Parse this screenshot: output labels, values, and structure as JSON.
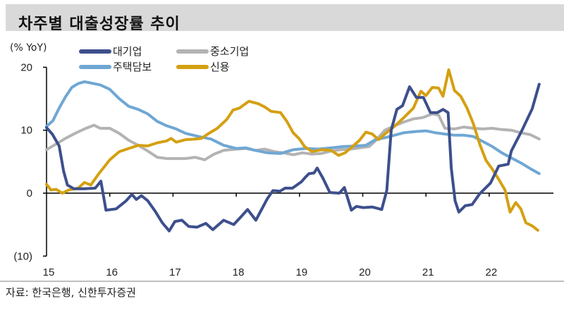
{
  "title": "차주별 대출성장률 추이",
  "source": "자료: 한국은행, 신한투자증권",
  "chart_data": {
    "type": "line",
    "title": "차주별 대출성장률 추이",
    "ylabel": "(% YoY)",
    "xlabel": "",
    "ylim": [
      -10,
      20
    ],
    "xlim": [
      2015,
      2022.75
    ],
    "yticks": [
      20,
      10,
      0,
      -10
    ],
    "ytick_labels": [
      "20",
      "10",
      "0",
      "(10)"
    ],
    "xticks": [
      2015,
      2016,
      2017,
      2018,
      2019,
      2020,
      2021,
      2022
    ],
    "xtick_labels": [
      "15",
      "16",
      "17",
      "18",
      "19",
      "20",
      "21",
      "22"
    ],
    "grid": false,
    "legend": "top",
    "series": [
      {
        "name": "대기업",
        "color": "#3d4f8c",
        "points": [
          [
            2015.0,
            10.4
          ],
          [
            2015.09,
            9.4
          ],
          [
            2015.2,
            7.5
          ],
          [
            2015.27,
            3.5
          ],
          [
            2015.33,
            1.3
          ],
          [
            2015.43,
            0.7
          ],
          [
            2015.6,
            0.7
          ],
          [
            2015.77,
            0.8
          ],
          [
            2015.86,
            1.9
          ],
          [
            2015.94,
            -2.7
          ],
          [
            2016.1,
            -2.5
          ],
          [
            2016.25,
            -1.3
          ],
          [
            2016.35,
            -0.2
          ],
          [
            2016.42,
            -1.0
          ],
          [
            2016.5,
            -0.4
          ],
          [
            2016.6,
            -1.2
          ],
          [
            2016.72,
            -2.9
          ],
          [
            2016.83,
            -4.7
          ],
          [
            2016.94,
            -6.0
          ],
          [
            2017.03,
            -4.5
          ],
          [
            2017.14,
            -4.3
          ],
          [
            2017.25,
            -5.3
          ],
          [
            2017.38,
            -5.4
          ],
          [
            2017.52,
            -4.8
          ],
          [
            2017.63,
            -5.8
          ],
          [
            2017.8,
            -4.3
          ],
          [
            2017.96,
            -5.0
          ],
          [
            2018.08,
            -3.7
          ],
          [
            2018.18,
            -2.6
          ],
          [
            2018.31,
            -4.3
          ],
          [
            2018.49,
            -0.9
          ],
          [
            2018.58,
            0.4
          ],
          [
            2018.69,
            0.3
          ],
          [
            2018.77,
            0.8
          ],
          [
            2018.89,
            0.8
          ],
          [
            2019.03,
            1.8
          ],
          [
            2019.09,
            2.5
          ],
          [
            2019.15,
            3.1
          ],
          [
            2019.23,
            3.2
          ],
          [
            2019.28,
            4.0
          ],
          [
            2019.37,
            2.4
          ],
          [
            2019.48,
            0.1
          ],
          [
            2019.63,
            0.0
          ],
          [
            2019.71,
            0.9
          ],
          [
            2019.82,
            -2.7
          ],
          [
            2019.9,
            -2.1
          ],
          [
            2020.01,
            -2.3
          ],
          [
            2020.15,
            -2.2
          ],
          [
            2020.3,
            -2.6
          ],
          [
            2020.38,
            0.4
          ],
          [
            2020.45,
            10.0
          ],
          [
            2020.54,
            13.3
          ],
          [
            2020.63,
            13.9
          ],
          [
            2020.74,
            16.9
          ],
          [
            2020.85,
            15.2
          ],
          [
            2020.96,
            15.2
          ],
          [
            2021.07,
            12.8
          ],
          [
            2021.18,
            12.8
          ],
          [
            2021.27,
            13.3
          ],
          [
            2021.35,
            12.8
          ],
          [
            2021.4,
            4.0
          ],
          [
            2021.46,
            -1.2
          ],
          [
            2021.52,
            -3.0
          ],
          [
            2021.62,
            -2.0
          ],
          [
            2021.73,
            -1.8
          ],
          [
            2021.85,
            -0.1
          ],
          [
            2022.02,
            1.6
          ],
          [
            2022.15,
            4.3
          ],
          [
            2022.3,
            4.6
          ],
          [
            2022.35,
            6.7
          ],
          [
            2022.52,
            10.0
          ],
          [
            2022.68,
            13.4
          ],
          [
            2022.79,
            17.3
          ]
        ]
      },
      {
        "name": "중소기업",
        "color": "#b3b3b3",
        "points": [
          [
            2015.0,
            6.9
          ],
          [
            2015.15,
            7.8
          ],
          [
            2015.3,
            8.7
          ],
          [
            2015.45,
            9.5
          ],
          [
            2015.6,
            10.2
          ],
          [
            2015.75,
            10.8
          ],
          [
            2015.85,
            10.3
          ],
          [
            2016.0,
            10.3
          ],
          [
            2016.15,
            9.5
          ],
          [
            2016.3,
            8.4
          ],
          [
            2016.45,
            7.6
          ],
          [
            2016.6,
            6.7
          ],
          [
            2016.75,
            5.7
          ],
          [
            2016.9,
            5.5
          ],
          [
            2017.05,
            5.5
          ],
          [
            2017.2,
            5.5
          ],
          [
            2017.35,
            5.7
          ],
          [
            2017.5,
            5.3
          ],
          [
            2017.65,
            6.2
          ],
          [
            2017.8,
            6.8
          ],
          [
            2018.0,
            7.0
          ],
          [
            2018.15,
            7.1
          ],
          [
            2018.3,
            6.8
          ],
          [
            2018.45,
            7.0
          ],
          [
            2018.6,
            6.6
          ],
          [
            2018.75,
            6.4
          ],
          [
            2018.9,
            6.1
          ],
          [
            2019.05,
            6.4
          ],
          [
            2019.2,
            6.2
          ],
          [
            2019.35,
            6.3
          ],
          [
            2019.5,
            6.7
          ],
          [
            2019.65,
            6.9
          ],
          [
            2019.8,
            7.0
          ],
          [
            2019.95,
            7.2
          ],
          [
            2020.1,
            7.4
          ],
          [
            2020.2,
            8.3
          ],
          [
            2020.35,
            10.0
          ],
          [
            2020.5,
            10.7
          ],
          [
            2020.65,
            11.3
          ],
          [
            2020.8,
            11.8
          ],
          [
            2020.95,
            12.0
          ],
          [
            2021.1,
            12.6
          ],
          [
            2021.2,
            12.4
          ],
          [
            2021.3,
            10.3
          ],
          [
            2021.45,
            10.2
          ],
          [
            2021.6,
            10.5
          ],
          [
            2021.75,
            10.3
          ],
          [
            2021.9,
            10.2
          ],
          [
            2022.05,
            10.3
          ],
          [
            2022.2,
            10.1
          ],
          [
            2022.35,
            10.0
          ],
          [
            2022.5,
            9.6
          ],
          [
            2022.65,
            9.3
          ],
          [
            2022.79,
            8.6
          ]
        ]
      },
      {
        "name": "주택담보",
        "color": "#6fa7d4",
        "points": [
          [
            2015.0,
            10.6
          ],
          [
            2015.1,
            11.5
          ],
          [
            2015.2,
            13.5
          ],
          [
            2015.3,
            15.3
          ],
          [
            2015.4,
            16.8
          ],
          [
            2015.5,
            17.4
          ],
          [
            2015.6,
            17.7
          ],
          [
            2015.7,
            17.5
          ],
          [
            2015.85,
            17.2
          ],
          [
            2016.0,
            16.5
          ],
          [
            2016.15,
            15.0
          ],
          [
            2016.3,
            13.8
          ],
          [
            2016.45,
            13.3
          ],
          [
            2016.6,
            12.6
          ],
          [
            2016.75,
            11.4
          ],
          [
            2016.9,
            10.7
          ],
          [
            2017.05,
            10.2
          ],
          [
            2017.2,
            9.5
          ],
          [
            2017.4,
            9.0
          ],
          [
            2017.6,
            8.6
          ],
          [
            2017.8,
            7.6
          ],
          [
            2018.0,
            7.1
          ],
          [
            2018.15,
            7.2
          ],
          [
            2018.3,
            6.8
          ],
          [
            2018.5,
            6.4
          ],
          [
            2018.7,
            6.3
          ],
          [
            2018.9,
            6.9
          ],
          [
            2019.1,
            7.1
          ],
          [
            2019.3,
            7.0
          ],
          [
            2019.5,
            7.2
          ],
          [
            2019.7,
            7.4
          ],
          [
            2019.9,
            7.5
          ],
          [
            2020.05,
            7.6
          ],
          [
            2020.2,
            8.5
          ],
          [
            2020.35,
            8.8
          ],
          [
            2020.5,
            9.2
          ],
          [
            2020.65,
            9.6
          ],
          [
            2020.85,
            9.8
          ],
          [
            2021.0,
            9.9
          ],
          [
            2021.15,
            9.6
          ],
          [
            2021.3,
            9.4
          ],
          [
            2021.45,
            9.2
          ],
          [
            2021.6,
            9.2
          ],
          [
            2021.75,
            9.0
          ],
          [
            2021.9,
            8.2
          ],
          [
            2022.05,
            7.4
          ],
          [
            2022.2,
            6.4
          ],
          [
            2022.35,
            5.6
          ],
          [
            2022.5,
            4.8
          ],
          [
            2022.65,
            3.9
          ],
          [
            2022.79,
            3.1
          ]
        ]
      },
      {
        "name": "신용",
        "color": "#d4a012",
        "points": [
          [
            2015.0,
            1.4
          ],
          [
            2015.07,
            0.5
          ],
          [
            2015.15,
            0.6
          ],
          [
            2015.25,
            0.0
          ],
          [
            2015.35,
            0.5
          ],
          [
            2015.5,
            0.8
          ],
          [
            2015.6,
            1.7
          ],
          [
            2015.7,
            1.3
          ],
          [
            2015.82,
            3.0
          ],
          [
            2016.0,
            5.3
          ],
          [
            2016.15,
            6.6
          ],
          [
            2016.3,
            7.1
          ],
          [
            2016.45,
            7.6
          ],
          [
            2016.6,
            7.5
          ],
          [
            2016.75,
            8.0
          ],
          [
            2016.9,
            8.3
          ],
          [
            2016.97,
            8.7
          ],
          [
            2017.05,
            8.1
          ],
          [
            2017.2,
            8.5
          ],
          [
            2017.35,
            8.6
          ],
          [
            2017.45,
            8.7
          ],
          [
            2017.55,
            9.4
          ],
          [
            2017.7,
            10.3
          ],
          [
            2017.85,
            11.7
          ],
          [
            2017.95,
            13.2
          ],
          [
            2018.05,
            13.5
          ],
          [
            2018.2,
            14.6
          ],
          [
            2018.35,
            14.2
          ],
          [
            2018.45,
            13.7
          ],
          [
            2018.55,
            13.0
          ],
          [
            2018.7,
            12.8
          ],
          [
            2018.8,
            11.4
          ],
          [
            2018.9,
            9.6
          ],
          [
            2019.0,
            8.6
          ],
          [
            2019.08,
            7.4
          ],
          [
            2019.2,
            6.6
          ],
          [
            2019.35,
            6.9
          ],
          [
            2019.5,
            6.8
          ],
          [
            2019.62,
            6.0
          ],
          [
            2019.72,
            6.4
          ],
          [
            2019.85,
            7.5
          ],
          [
            2019.95,
            8.4
          ],
          [
            2020.05,
            9.7
          ],
          [
            2020.15,
            9.4
          ],
          [
            2020.25,
            8.5
          ],
          [
            2020.35,
            9.4
          ],
          [
            2020.5,
            10.6
          ],
          [
            2020.65,
            12.0
          ],
          [
            2020.8,
            13.5
          ],
          [
            2020.92,
            16.2
          ],
          [
            2021.0,
            15.5
          ],
          [
            2021.1,
            16.8
          ],
          [
            2021.2,
            16.7
          ],
          [
            2021.27,
            15.4
          ],
          [
            2021.36,
            19.6
          ],
          [
            2021.45,
            16.3
          ],
          [
            2021.55,
            15.4
          ],
          [
            2021.65,
            13.5
          ],
          [
            2021.75,
            11.0
          ],
          [
            2021.85,
            7.8
          ],
          [
            2021.95,
            5.2
          ],
          [
            2022.05,
            3.8
          ],
          [
            2022.15,
            2.2
          ],
          [
            2022.25,
            0.5
          ],
          [
            2022.33,
            -3.0
          ],
          [
            2022.42,
            -1.5
          ],
          [
            2022.5,
            -2.5
          ],
          [
            2022.58,
            -4.7
          ],
          [
            2022.68,
            -5.2
          ],
          [
            2022.77,
            -5.9
          ]
        ]
      }
    ]
  }
}
